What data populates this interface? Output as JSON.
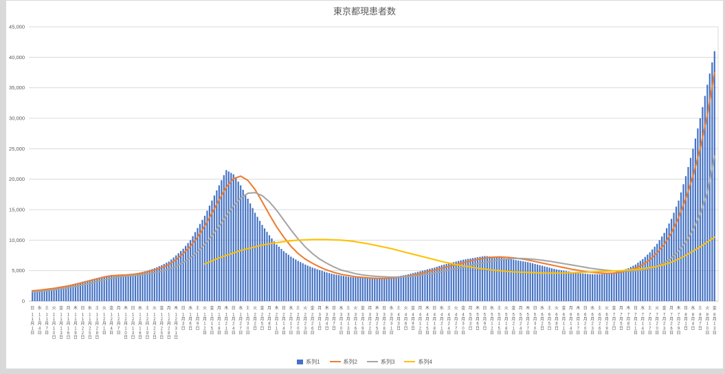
{
  "chart_data": {
    "type": "combo",
    "title": "東京都現患者数",
    "ylim": [
      0,
      45000
    ],
    "y_ticks": [
      "0",
      "5,000",
      "10,000",
      "15,000",
      "20,000",
      "25,000",
      "30,000",
      "35,000",
      "40,000",
      "45,000"
    ],
    "grid": true,
    "legend_position": "bottom",
    "weekdays": [
      "日",
      "水",
      "土",
      "火",
      "金",
      "月",
      "木",
      "日",
      "水",
      "土",
      "火",
      "金",
      "月",
      "木",
      "日",
      "水",
      "土",
      "火",
      "金",
      "月",
      "木",
      "日",
      "水",
      "土",
      "火",
      "金",
      "月",
      "木",
      "日",
      "水",
      "土",
      "火",
      "金",
      "月",
      "木",
      "日",
      "水",
      "土",
      "火",
      "金",
      "月",
      "木",
      "日",
      "水",
      "土",
      "火",
      "金",
      "月",
      "木",
      "日",
      "水",
      "土",
      "火",
      "金",
      "月",
      "木",
      "日",
      "水",
      "土",
      "火",
      "金",
      "月",
      "木",
      "日",
      "水",
      "土",
      "火",
      "金",
      "月",
      "木",
      "日",
      "水",
      "土",
      "火",
      "金",
      "月",
      "木",
      "日",
      "水",
      "土",
      "火",
      "金",
      "月",
      "木",
      "日",
      "水",
      "土",
      "火",
      "金",
      "月",
      "木",
      "日",
      "水",
      "土",
      "火",
      "金"
    ],
    "categories": [
      "11月1日",
      "11月4日",
      "11月7日",
      "11月10日",
      "11月13日",
      "11月16日",
      "11月19日",
      "11月22日",
      "11月25日",
      "11月28日",
      "12月1日",
      "12月4日",
      "12月7日",
      "12月10日",
      "12月13日",
      "12月16日",
      "12月19日",
      "12月22日",
      "12月25日",
      "12月28日",
      "12月31日",
      "1月3日",
      "1月6日",
      "1月9日",
      "1月12日",
      "1月15日",
      "1月18日",
      "1月21日",
      "1月24日",
      "1月27日",
      "1月30日",
      "2月2日",
      "2月5日",
      "2月8日",
      "2月11日",
      "2月14日",
      "2月17日",
      "2月20日",
      "2月23日",
      "2月26日",
      "3月1日",
      "3月4日",
      "3月7日",
      "3月10日",
      "3月13日",
      "3月16日",
      "3月19日",
      "3月22日",
      "3月25日",
      "3月28日",
      "3月31日",
      "4月3日",
      "4月6日",
      "4月9日",
      "4月12日",
      "4月15日",
      "4月18日",
      "4月21日",
      "4月24日",
      "4月27日",
      "4月30日",
      "5月3日",
      "5月6日",
      "5月9日",
      "5月12日",
      "5月15日",
      "5月18日",
      "5月21日",
      "5月24日",
      "5月27日",
      "5月30日",
      "6月2日",
      "6月5日",
      "6月8日",
      "6月11日",
      "6月14日",
      "6月17日",
      "6月20日",
      "6月23日",
      "6月26日",
      "6月29日",
      "7月2日",
      "7月5日",
      "7月8日",
      "7月11日",
      "7月14日",
      "7月17日",
      "7月20日",
      "7月23日",
      "7月26日",
      "7月29日",
      "8月1日",
      "8月4日",
      "8月7日",
      "8月10日",
      "8月13日"
    ],
    "series": [
      {
        "name": "系列1",
        "type": "bar",
        "color": "#4472c4",
        "values": [
          1800,
          1900,
          2000,
          2200,
          2400,
          2600,
          2900,
          3200,
          3500,
          3800,
          4100,
          4300,
          4200,
          4400,
          4500,
          4700,
          5000,
          5400,
          5900,
          6500,
          7500,
          8600,
          10000,
          12000,
          14000,
          16500,
          19000,
          21500,
          20800,
          19000,
          16800,
          14500,
          12500,
          10800,
          9300,
          8200,
          7300,
          6600,
          6000,
          5500,
          5100,
          4700,
          4400,
          4200,
          4000,
          3900,
          3800,
          3700,
          3700,
          3800,
          3900,
          4100,
          4300,
          4600,
          4900,
          5200,
          5500,
          5900,
          6200,
          6500,
          6800,
          7000,
          7200,
          7400,
          7300,
          7200,
          7000,
          6800,
          6600,
          6400,
          6100,
          5800,
          5500,
          5200,
          5000,
          4800,
          4600,
          4500,
          4400,
          4400,
          4500,
          4700,
          5000,
          5400,
          6000,
          6900,
          8000,
          9400,
          11200,
          13500,
          16500,
          20500,
          25000,
          30000,
          35500,
          41000
        ]
      },
      {
        "name": "系列2",
        "type": "line",
        "color": "#ed7d31",
        "values": [
          1700,
          1800,
          1950,
          2100,
          2300,
          2500,
          2750,
          3050,
          3350,
          3650,
          3950,
          4150,
          4250,
          4300,
          4400,
          4550,
          4800,
          5100,
          5500,
          6000,
          6800,
          7800,
          9000,
          10500,
          12300,
          14400,
          16600,
          18700,
          20100,
          20500,
          19800,
          18300,
          16300,
          14200,
          12200,
          10500,
          9000,
          7800,
          6900,
          6200,
          5600,
          5100,
          4700,
          4400,
          4200,
          4000,
          3900,
          3800,
          3750,
          3750,
          3800,
          3900,
          4050,
          4250,
          4500,
          4800,
          5100,
          5400,
          5700,
          6000,
          6300,
          6600,
          6850,
          7050,
          7200,
          7250,
          7200,
          7100,
          6950,
          6750,
          6500,
          6250,
          6000,
          5750,
          5500,
          5250,
          5050,
          4850,
          4700,
          4600,
          4550,
          4600,
          4750,
          5000,
          5400,
          6000,
          6800,
          7900,
          9300,
          11200,
          13700,
          16800,
          20500,
          25000,
          30500,
          37500
        ]
      },
      {
        "name": "系列3",
        "type": "line",
        "color": "#a5a5a5",
        "values": [
          1500,
          1600,
          1700,
          1850,
          2000,
          2200,
          2400,
          2650,
          2900,
          3200,
          3500,
          3750,
          3950,
          4100,
          4200,
          4300,
          4450,
          4650,
          4900,
          5250,
          5700,
          6300,
          7100,
          8100,
          9300,
          10700,
          12300,
          14000,
          15600,
          16900,
          17700,
          17800,
          17300,
          16300,
          14900,
          13300,
          11700,
          10200,
          8900,
          7800,
          6900,
          6200,
          5600,
          5100,
          4800,
          4500,
          4300,
          4150,
          4050,
          4000,
          3950,
          3950,
          4000,
          4100,
          4250,
          4400,
          4600,
          4850,
          5100,
          5350,
          5600,
          5850,
          6100,
          6350,
          6550,
          6750,
          6900,
          7000,
          7000,
          6950,
          6850,
          6700,
          6550,
          6350,
          6150,
          5950,
          5750,
          5550,
          5350,
          5200,
          5050,
          4950,
          4900,
          4900,
          4950,
          5100,
          5350,
          5750,
          6300,
          7100,
          8200,
          9700,
          11700,
          14300,
          17800,
          23800
        ]
      },
      {
        "name": "系列4",
        "type": "line",
        "color": "#ffc000",
        "values": [
          null,
          null,
          null,
          null,
          null,
          null,
          null,
          null,
          null,
          null,
          null,
          null,
          null,
          null,
          null,
          null,
          null,
          null,
          null,
          null,
          null,
          null,
          null,
          null,
          6100,
          6600,
          7100,
          7500,
          7900,
          8300,
          8600,
          8900,
          9200,
          9400,
          9600,
          9750,
          9900,
          10000,
          10050,
          10100,
          10100,
          10100,
          10050,
          10000,
          9900,
          9750,
          9550,
          9350,
          9100,
          8850,
          8600,
          8300,
          8000,
          7700,
          7400,
          7100,
          6800,
          6500,
          6250,
          6000,
          5800,
          5600,
          5400,
          5250,
          5100,
          5000,
          4900,
          4800,
          4750,
          4700,
          4650,
          4600,
          4600,
          4600,
          4600,
          4650,
          4700,
          4750,
          4800,
          4850,
          4900,
          4950,
          5000,
          5100,
          5200,
          5350,
          5500,
          5700,
          6000,
          6400,
          6900,
          7500,
          8200,
          8900,
          9700,
          10500
        ]
      }
    ]
  }
}
